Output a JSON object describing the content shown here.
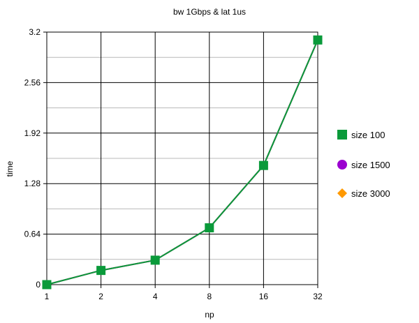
{
  "chart_data": {
    "type": "line",
    "title": "bw 1Gbps & lat 1us",
    "xlabel": "np",
    "ylabel": "time",
    "x_categories": [
      "1",
      "2",
      "4",
      "8",
      "16",
      "32"
    ],
    "y_ticks": [
      "0",
      "0.64",
      "1.28",
      "1.92",
      "2.56",
      "3.2"
    ],
    "ylim": [
      0,
      3.2
    ],
    "grid": true,
    "legend_position": "right",
    "series": [
      {
        "name": "size 100",
        "color": "#0a9a3a",
        "marker": "square",
        "values": [
          0,
          0.18,
          0.31,
          0.72,
          1.51,
          3.1
        ]
      },
      {
        "name": "size 1500",
        "color": "#9b00d0",
        "marker": "circle",
        "values": [
          0,
          0.18,
          0.31,
          0.72,
          1.51,
          3.1
        ]
      },
      {
        "name": "size 3000",
        "color": "#ff9900",
        "marker": "diamond",
        "values": [
          0,
          0.18,
          0.31,
          0.72,
          1.51,
          3.1
        ]
      }
    ]
  }
}
